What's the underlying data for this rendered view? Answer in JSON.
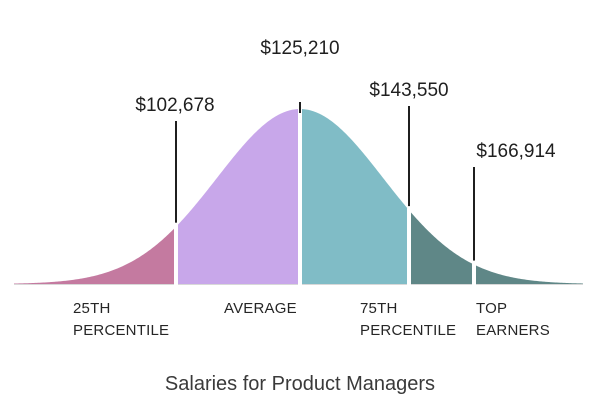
{
  "chart_data": {
    "type": "area",
    "title": "Salaries for Product Managers",
    "segments": [
      {
        "name": "25TH PERCENTILE",
        "lines": [
          "25TH",
          "PERCENTILE"
        ],
        "color": "#c47aa0"
      },
      {
        "name": "AVERAGE",
        "lines": [
          "AVERAGE"
        ],
        "color": "#c8a7ea"
      },
      {
        "name": "75TH PERCENTILE",
        "lines": [
          "75TH",
          "PERCENTILE"
        ],
        "color": "#80bcc6"
      },
      {
        "name": "TOP EARNERS",
        "lines": [
          "TOP",
          "EARNERS"
        ],
        "color": "#5f8787"
      }
    ],
    "markers": [
      {
        "label": "$102,678",
        "value": 102678
      },
      {
        "label": "$125,210",
        "value": 125210
      },
      {
        "label": "$143,550",
        "value": 143550
      },
      {
        "label": "$166,914",
        "value": 166914
      }
    ],
    "xlabel": "",
    "ylabel": ""
  }
}
